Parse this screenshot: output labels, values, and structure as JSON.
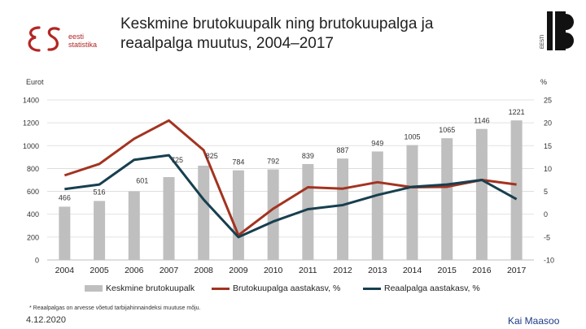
{
  "header": {
    "title_line1": "Keskmine brutokuupalk ning brutokuupalga ja",
    "title_line2": "reaalpalga muutus, 2004–2017",
    "logo_left_text_1": "eesti",
    "logo_left_text_2": "statistika",
    "logo_right_text": "EESTI"
  },
  "footer": {
    "footnote": "* Reaalpalgas on arvesse võetud tarbijahinnaindeksi muutuse mõju.",
    "date": "4.12.2020",
    "author": "Kai Maasoo"
  },
  "colors": {
    "bars": "#bfbfbf",
    "gross_line": "#a33320",
    "real_line": "#173f4f",
    "title_red": "#b32624",
    "author": "#1b3a88"
  },
  "chart_data": {
    "type": "bar",
    "title": "",
    "categories": [
      "2004",
      "2005",
      "2006",
      "2007",
      "2008",
      "2009",
      "2010",
      "2011",
      "2012",
      "2013",
      "2014",
      "2015",
      "2016",
      "2017"
    ],
    "left_axis": {
      "label": "Eurot",
      "ylim": [
        0,
        1400
      ],
      "ticks": [
        "0",
        "200",
        "400",
        "600",
        "800",
        "1000",
        "1200",
        "1400"
      ]
    },
    "right_axis": {
      "label": "%",
      "ylim": [
        -10,
        25
      ],
      "ticks": [
        "-10",
        "-5",
        "0",
        "5",
        "10",
        "15",
        "20",
        "25"
      ]
    },
    "series": [
      {
        "name": "Keskmine brutokuupalk",
        "kind": "bar",
        "axis": "left",
        "values": [
          466,
          516,
          601,
          725,
          825,
          784,
          792,
          839,
          887,
          949,
          1005,
          1065,
          1146,
          1221
        ],
        "labels": [
          "466",
          "516",
          "601",
          "725",
          "825",
          "784",
          "792",
          "839",
          "887",
          "949",
          "1005",
          "1065",
          "1146",
          "1221"
        ]
      },
      {
        "name": "Brutokuupalga aastakasv, %",
        "kind": "line",
        "axis": "right",
        "values": [
          8.5,
          11.0,
          16.5,
          20.5,
          14.0,
          -4.6,
          1.2,
          5.9,
          5.6,
          7.0,
          5.9,
          6.0,
          7.5,
          6.5
        ]
      },
      {
        "name": "Reaalpalga aastakasv, %",
        "kind": "line",
        "axis": "right",
        "values": [
          5.5,
          6.5,
          11.9,
          12.9,
          3.2,
          -5.0,
          -1.6,
          1.1,
          2.0,
          4.2,
          6.0,
          6.5,
          7.5,
          3.3
        ]
      }
    ],
    "grid": true,
    "legend_position": "bottom"
  }
}
